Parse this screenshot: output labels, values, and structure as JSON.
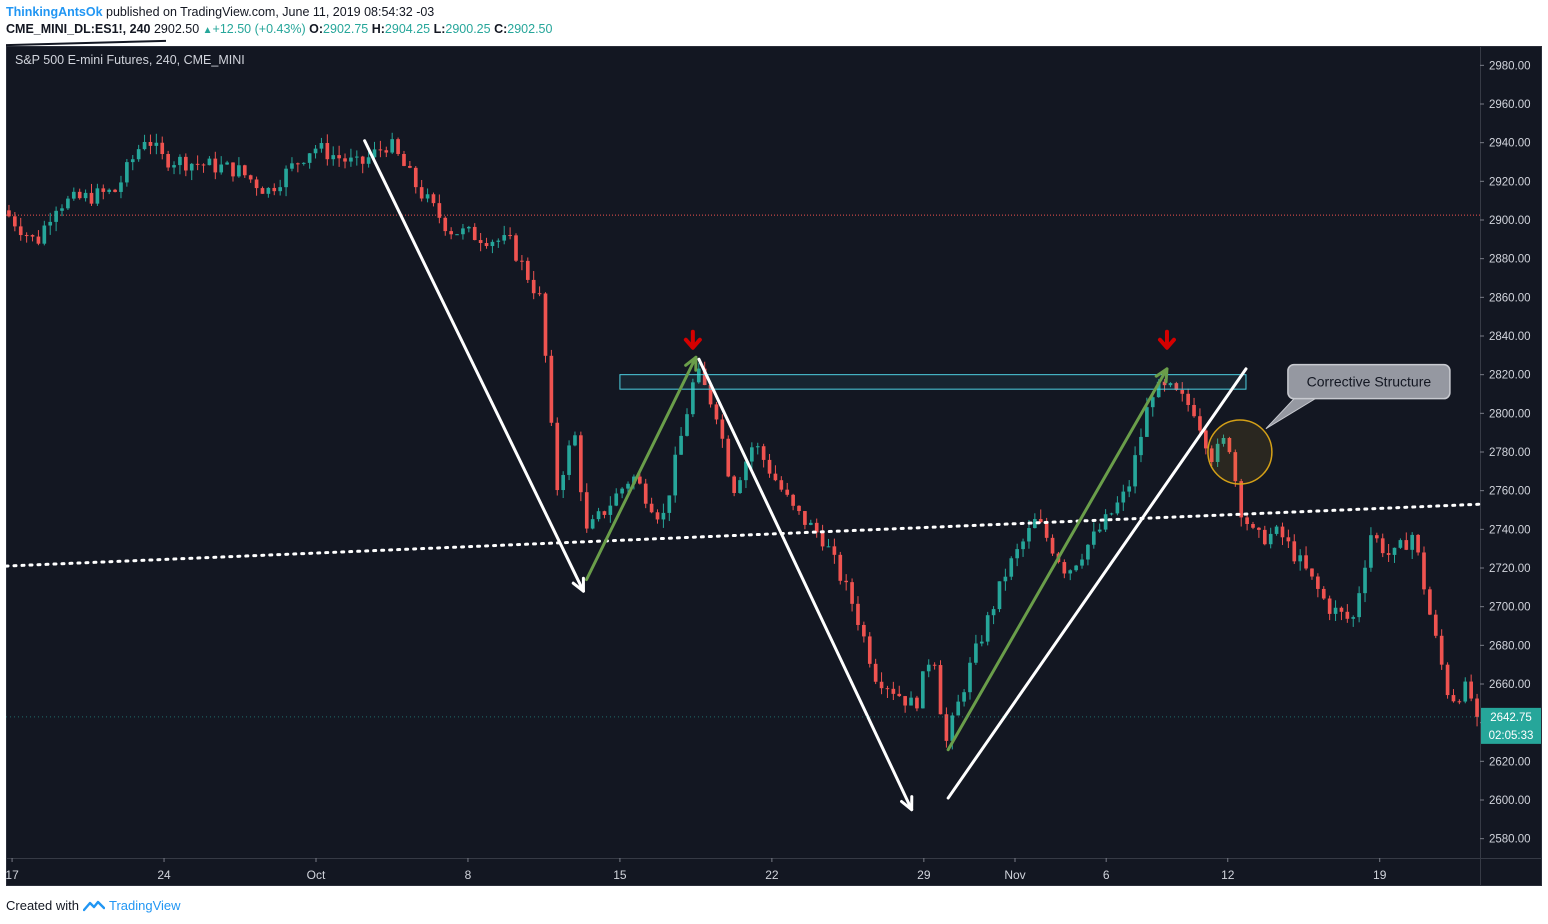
{
  "header": {
    "author": "ThinkingAntsOk",
    "published": "published on TradingView.com, June 11, 2019 08:54:32 -03",
    "symbol": "CME_MINI_DL:ES1!, 240",
    "price": "2902.50",
    "change": "+12.50 (+0.43%)",
    "o_label": "O:",
    "o_value": "2902.75",
    "h_label": "H:",
    "h_value": "2904.25",
    "l_label": "L:",
    "l_value": "2900.25",
    "c_label": "C:",
    "c_value": "2902.50"
  },
  "footer": {
    "created_with": "Created with",
    "brand": "TradingView",
    "logo_icon": "tradingview-logo-icon"
  },
  "colors": {
    "background": "#131722",
    "up": "#26a69a",
    "down": "#ef5350",
    "annotation_white": "#ffffff",
    "annotation_green": "#6a9e4a",
    "zone": "#4dd0e1",
    "arrow_red": "#d50000",
    "circle": "#d4a017",
    "ref_line": "#ef5350"
  },
  "chart_data": {
    "type": "candlestick",
    "instrument_label": "S&P 500 E-mini Futures, 240, CME_MINI",
    "timeframe": "240",
    "ylim": [
      2570,
      2990
    ],
    "y_ticks": [
      2980,
      2960,
      2940,
      2920,
      2900,
      2880,
      2860,
      2840,
      2820,
      2800,
      2780,
      2760,
      2740,
      2720,
      2700,
      2680,
      2660,
      2640,
      2620,
      2600,
      2580
    ],
    "y_tick_labels": [
      "2980.00",
      "2960.00",
      "2940.00",
      "2920.00",
      "2900.00",
      "2880.00",
      "2860.00",
      "2840.00",
      "2820.00",
      "2800.00",
      "2780.00",
      "2760.00",
      "2740.00",
      "2720.00",
      "2700.00",
      "2680.00",
      "2660.00",
      "2640.00",
      "2620.00",
      "2600.00",
      "2580.00"
    ],
    "x_ticks": [
      {
        "label": "17",
        "t": 0
      },
      {
        "label": "24",
        "t": 5
      },
      {
        "label": "Oct",
        "t": 10
      },
      {
        "label": "8",
        "t": 15
      },
      {
        "label": "15",
        "t": 20
      },
      {
        "label": "22",
        "t": 25
      },
      {
        "label": "29",
        "t": 30
      },
      {
        "label": "Nov",
        "t": 33
      },
      {
        "label": "6",
        "t": 36
      },
      {
        "label": "12",
        "t": 40
      },
      {
        "label": "19",
        "t": 45
      }
    ],
    "t_range": [
      -0.2,
      48.3
    ],
    "key_points": [
      {
        "t": -0.2,
        "price": 2905
      },
      {
        "t": 0.9,
        "price": 2888
      },
      {
        "t": 1.5,
        "price": 2908
      },
      {
        "t": 3.5,
        "price": 2915
      },
      {
        "t": 4.5,
        "price": 2944
      },
      {
        "t": 5.0,
        "price": 2932
      },
      {
        "t": 7.5,
        "price": 2926
      },
      {
        "t": 8.5,
        "price": 2915
      },
      {
        "t": 10.0,
        "price": 2938
      },
      {
        "t": 11.5,
        "price": 2928
      },
      {
        "t": 12.5,
        "price": 2940
      },
      {
        "t": 13.5,
        "price": 2915
      },
      {
        "t": 14.5,
        "price": 2895
      },
      {
        "t": 16.5,
        "price": 2888
      },
      {
        "t": 17.5,
        "price": 2858
      },
      {
        "t": 18.0,
        "price": 2760
      },
      {
        "t": 18.6,
        "price": 2790
      },
      {
        "t": 19.0,
        "price": 2738
      },
      {
        "t": 20.5,
        "price": 2768
      },
      {
        "t": 21.5,
        "price": 2745
      },
      {
        "t": 22.6,
        "price": 2822
      },
      {
        "t": 23.3,
        "price": 2800
      },
      {
        "t": 23.8,
        "price": 2760
      },
      {
        "t": 24.5,
        "price": 2785
      },
      {
        "t": 25.8,
        "price": 2750
      },
      {
        "t": 26.8,
        "price": 2735
      },
      {
        "t": 27.8,
        "price": 2700
      },
      {
        "t": 28.5,
        "price": 2665
      },
      {
        "t": 29.8,
        "price": 2648
      },
      {
        "t": 30.4,
        "price": 2680
      },
      {
        "t": 30.8,
        "price": 2628
      },
      {
        "t": 31.6,
        "price": 2668
      },
      {
        "t": 32.8,
        "price": 2718
      },
      {
        "t": 33.8,
        "price": 2745
      },
      {
        "t": 34.8,
        "price": 2718
      },
      {
        "t": 35.8,
        "price": 2738
      },
      {
        "t": 36.8,
        "price": 2760
      },
      {
        "t": 37.6,
        "price": 2812
      },
      {
        "t": 38.2,
        "price": 2812
      },
      {
        "t": 39.0,
        "price": 2802
      },
      {
        "t": 39.6,
        "price": 2777
      },
      {
        "t": 40.1,
        "price": 2788
      },
      {
        "t": 40.5,
        "price": 2752
      },
      {
        "t": 41.0,
        "price": 2735
      },
      {
        "t": 41.8,
        "price": 2738
      },
      {
        "t": 42.6,
        "price": 2720
      },
      {
        "t": 43.4,
        "price": 2700
      },
      {
        "t": 44.2,
        "price": 2692
      },
      {
        "t": 44.8,
        "price": 2738
      },
      {
        "t": 45.5,
        "price": 2725
      },
      {
        "t": 46.2,
        "price": 2738
      },
      {
        "t": 46.8,
        "price": 2692
      },
      {
        "t": 47.4,
        "price": 2652
      },
      {
        "t": 48.0,
        "price": 2658
      },
      {
        "t": 48.3,
        "price": 2643
      }
    ],
    "reference_price": 2902.5,
    "last_price_label": "2642.75",
    "countdown_label": "02:05:33",
    "annotations": {
      "zone": {
        "t1": 20.0,
        "t2": 40.6,
        "p1": 2812.5,
        "p2": 2820
      },
      "label": "Corrective Structure",
      "label_pointer": {
        "t": 40.4,
        "price": 2790
      },
      "circle": {
        "t": 40.4,
        "price": 2780
      },
      "red_arrows": [
        {
          "t": 22.4,
          "price": 2836
        },
        {
          "t": 38.0,
          "price": 2836
        }
      ],
      "neckline": [
        {
          "t": -0.2,
          "price": 2721
        },
        {
          "t": 48.3,
          "price": 2753
        }
      ],
      "white_lines": [
        [
          {
            "t": 11.6,
            "price": 2941
          },
          {
            "t": 18.8,
            "price": 2708
          }
        ],
        [
          {
            "t": 22.6,
            "price": 2828
          },
          {
            "t": 29.6,
            "price": 2595
          }
        ],
        [
          {
            "t": 30.8,
            "price": 2601
          },
          {
            "t": 40.6,
            "price": 2823
          }
        ]
      ],
      "green_lines": [
        [
          {
            "t": 18.9,
            "price": 2714
          },
          {
            "t": 22.5,
            "price": 2829
          }
        ],
        [
          {
            "t": 30.8,
            "price": 2626
          },
          {
            "t": 38.0,
            "price": 2823
          }
        ]
      ]
    }
  }
}
